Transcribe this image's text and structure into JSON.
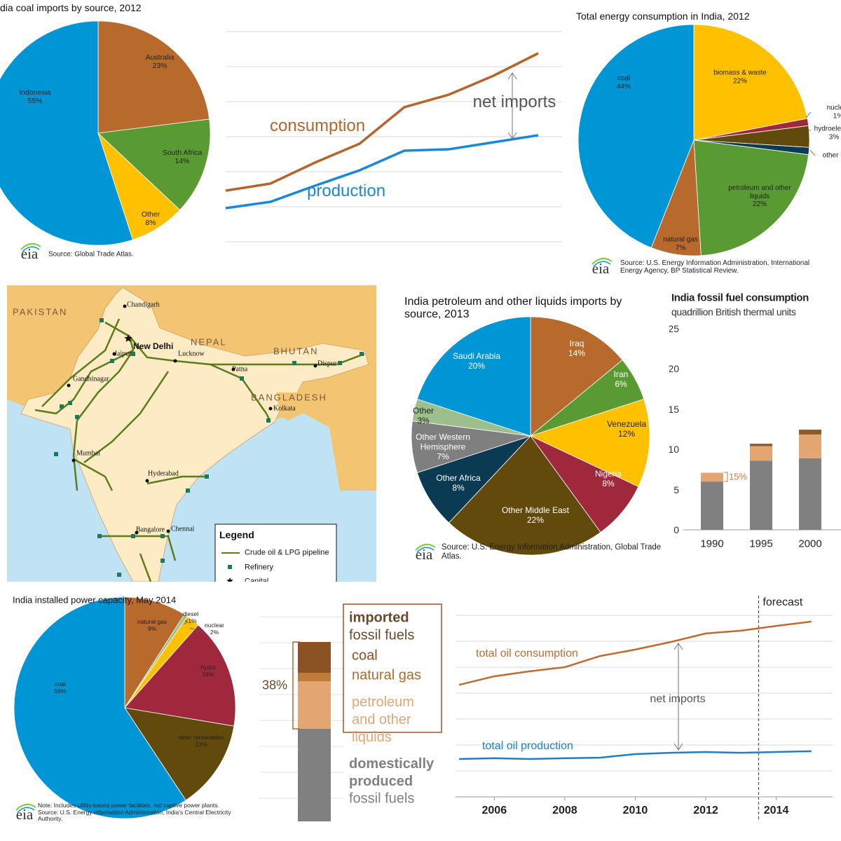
{
  "chart_data": [
    {
      "type": "pie",
      "title": "dia coal imports by source, 2012",
      "categories": [
        "Australia",
        "South Africa",
        "Other",
        "Indonesia"
      ],
      "values": [
        23,
        14,
        8,
        55
      ],
      "value_labels": [
        "23%",
        "14%",
        "8%",
        "55%"
      ],
      "colors": [
        "#b8692c",
        "#5a9a32",
        "#ffc000",
        "#0096d6"
      ],
      "source": "Source: Global Trade Atlas.",
      "logo": "eia"
    },
    {
      "type": "line",
      "categories": [
        null,
        null,
        null,
        null,
        null,
        null,
        null,
        null
      ],
      "ylim": [
        0,
        6
      ],
      "yticks": [
        0,
        1,
        2,
        3,
        4,
        5,
        6
      ],
      "grid": true,
      "series": [
        {
          "name": "consumption",
          "color": "#b5652a",
          "values": [
            1.46,
            1.66,
            2.26,
            2.8,
            3.84,
            4.2,
            4.74,
            5.38
          ]
        },
        {
          "name": "production",
          "color": "#1a88d8",
          "values": [
            0.96,
            1.14,
            1.6,
            2.04,
            2.6,
            2.64,
            2.84,
            3.04
          ]
        }
      ],
      "annotation": "net imports"
    },
    {
      "type": "pie",
      "title": "Total energy consumption in India, 2012",
      "categories": [
        "biomass & waste",
        "nuclear",
        "hydroelectric",
        "other renewables",
        "petroleum and other liquids",
        "natural gas",
        "coal"
      ],
      "values": [
        22,
        1,
        3,
        1,
        22,
        7,
        44
      ],
      "value_labels": [
        "22%",
        "1%",
        "3%",
        null,
        "22%",
        "7%",
        "44%"
      ],
      "colors": [
        "#ffc000",
        "#a0283c",
        "#614a0c",
        "#0b3a53",
        "#5a9a32",
        "#b8692c",
        "#0096d6"
      ],
      "source": "Source: U.S. Energy Information Administration, International Energy Agency, BP Statistical Review.",
      "logo": "eia"
    },
    {
      "type": "pie",
      "title": "India petroleum and other liquids imports by source, 2013",
      "categories": [
        "Iraq",
        "Iran",
        "Venezuela",
        "Nigeria",
        "Other Middle East",
        "Other Africa",
        "Other Western Hemisphere",
        "Other",
        "Saudi Arabia"
      ],
      "values": [
        14,
        6,
        12,
        8,
        22,
        8,
        7,
        3,
        20
      ],
      "value_labels": [
        "14%",
        "6%",
        "12%",
        "8%",
        "22%",
        "8%",
        "7%",
        "3%",
        "20%"
      ],
      "colors": [
        "#b8692c",
        "#5a9a32",
        "#ffc000",
        "#a0283c",
        "#614a0c",
        "#0b3a53",
        "#7f7f7f",
        "#9dbf8e",
        "#0096d6"
      ],
      "source": "Source: U.S. Energy Information Administration, Global Trade Atlas.",
      "logo": "eia"
    },
    {
      "type": "bar",
      "stacked": true,
      "title": "India fossil fuel consumption",
      "subtitle": "quadrillion British thermal units",
      "categories": [
        "1990",
        "1995",
        "2000"
      ],
      "series": [
        {
          "color": "#808080",
          "values": [
            6.0,
            8.6,
            8.9
          ]
        },
        {
          "color": "#e3a673",
          "values": [
            1.1,
            1.8,
            2.95
          ]
        },
        {
          "color": "#8b5a2b",
          "values": [
            0,
            0.3,
            0.6
          ]
        }
      ],
      "ylim": [
        0,
        25
      ],
      "yticks": [
        0,
        5,
        10,
        15,
        20,
        25
      ],
      "annotation": "15%"
    },
    {
      "type": "pie",
      "title": "India installed power capacity, May 2014",
      "categories": [
        "natural gas",
        "diesel",
        "nuclear",
        "hydro",
        "other renewables",
        "coal"
      ],
      "values": [
        9,
        0.5,
        2,
        16,
        13,
        59
      ],
      "value_labels": [
        "9%",
        "<1%",
        "2%",
        "16%",
        "13%",
        "59%"
      ],
      "colors": [
        "#b8692c",
        "#9dbf8e",
        "#ffc000",
        "#a0283c",
        "#614a0c",
        "#0096d6"
      ],
      "note": "Note: Includes utility-based power facilities, not captive power plants.",
      "source": "Source: U.S. Energy Information Administration, India's Central Electricity Authority.",
      "logo": "eia"
    },
    {
      "type": "line",
      "x": [
        2005,
        2006,
        2007,
        2008,
        2009,
        2010,
        2011,
        2012,
        2013,
        2014,
        2015
      ],
      "xlim": [
        2004.9,
        2015.6
      ],
      "xticks": [
        2006,
        2008,
        2010,
        2012,
        2014
      ],
      "ylim": [
        0,
        7
      ],
      "yticks": [
        0,
        1,
        2,
        3,
        4,
        5,
        6,
        7
      ],
      "grid": true,
      "forecast_start": 2013.5,
      "forecast_label": "forecast",
      "series": [
        {
          "name": "total oil consumption",
          "color": "#bd6b31",
          "values": [
            4.32,
            4.65,
            4.84,
            5.0,
            5.43,
            5.68,
            5.97,
            6.3,
            6.41,
            6.59,
            6.76
          ]
        },
        {
          "name": "total oil production",
          "color": "#1f7fc4",
          "values": [
            1.46,
            1.49,
            1.46,
            1.49,
            1.51,
            1.65,
            1.7,
            1.73,
            1.7,
            1.73,
            1.76
          ]
        }
      ],
      "annotation": "net imports"
    }
  ],
  "map": {
    "countries": [
      "PAKISTAN",
      "NEPAL",
      "BHUTAN",
      "BANGLADESH"
    ],
    "cities": [
      "Chandigarh",
      "Jaipur",
      "Lucknow",
      "Patna",
      "Dispur",
      "Gandhinagar",
      "Kolkata",
      "Mumbai",
      "Hyderabad",
      "Bangalore",
      "Chennai"
    ],
    "capital": "New Delhi",
    "legend": {
      "title": "Legend",
      "items": [
        "Crude oil & LPG pipeline",
        "Refinery",
        "Capital"
      ]
    }
  },
  "legend_panel": {
    "share": "38%",
    "imported": "imported",
    "imported_sub": "fossil fuels",
    "items": [
      "coal",
      "natural gas",
      "petroleum and other liquids"
    ],
    "domestic": "domestically produced",
    "domestic_sub": "fossil fuels"
  }
}
